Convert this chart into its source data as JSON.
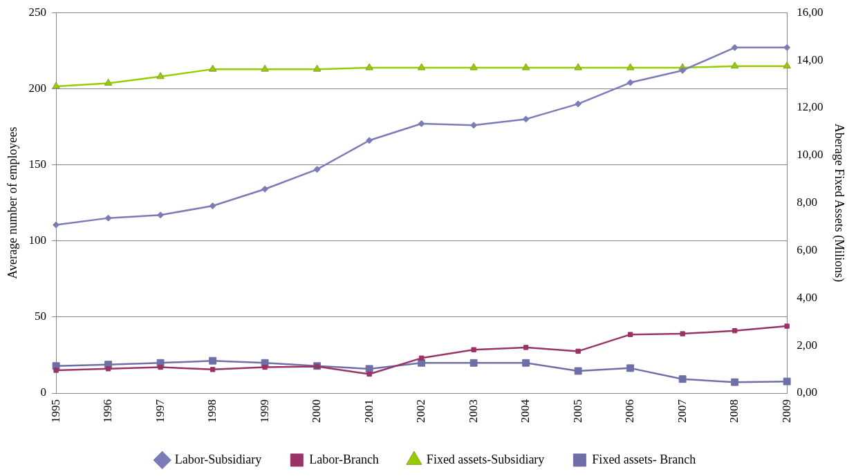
{
  "chart_data": {
    "type": "line",
    "categories": [
      "1995",
      "1996",
      "1997",
      "1998",
      "1999",
      "2000",
      "2001",
      "2002",
      "2003",
      "2004",
      "2005",
      "2006",
      "2007",
      "2008",
      "2009"
    ],
    "ylabel": "Average number of employees",
    "y2label": "Aberage Fixed Assets (Milions)",
    "ylim": [
      0,
      250
    ],
    "yticks": [
      0,
      50,
      100,
      150,
      200,
      250
    ],
    "y2lim": [
      0,
      16
    ],
    "y2ticks": [
      {
        "value": 0,
        "label": "0,00"
      },
      {
        "value": 2,
        "label": "2,00"
      },
      {
        "value": 4,
        "label": "4,00"
      },
      {
        "value": 6,
        "label": "6,00"
      },
      {
        "value": 8,
        "label": "8,00"
      },
      {
        "value": 10,
        "label": "10,00"
      },
      {
        "value": 12,
        "label": "12,00"
      },
      {
        "value": 14,
        "label": "14,00"
      },
      {
        "value": 16,
        "label": "16,00"
      }
    ],
    "grid": "y",
    "legend": "bottom",
    "line_style": "solid",
    "series": [
      {
        "name": "Labor-Subsidiary",
        "color": "#7b7bb8",
        "marker": "diamond",
        "values": [
          110.5,
          115,
          117,
          123,
          134,
          147,
          166,
          177,
          176,
          180,
          190,
          204,
          212,
          227,
          227
        ]
      },
      {
        "name": "Labor-Branch",
        "color": "#993366",
        "marker": "square",
        "values": [
          15,
          16,
          17,
          15.5,
          17,
          17.5,
          12.5,
          23,
          28.5,
          30,
          27.5,
          38.5,
          39,
          41,
          44
        ]
      },
      {
        "name": "Fixed assets-Subsidiary",
        "color": "#99cc00",
        "marker": "triangle",
        "axis": "y2",
        "values": [
          12.9,
          13.03,
          13.31,
          13.62,
          13.62,
          13.62,
          13.68,
          13.68,
          13.68,
          13.68,
          13.68,
          13.68,
          13.68,
          13.75,
          13.75
        ]
      },
      {
        "name": "Fixed assets- Branch",
        "color": "#6f6fa8",
        "marker": "square",
        "axis": "y2",
        "values": [
          1.14,
          1.2,
          1.27,
          1.36,
          1.27,
          1.14,
          1.02,
          1.27,
          1.27,
          1.27,
          0.93,
          1.05,
          0.59,
          0.46,
          0.49
        ]
      }
    ]
  }
}
